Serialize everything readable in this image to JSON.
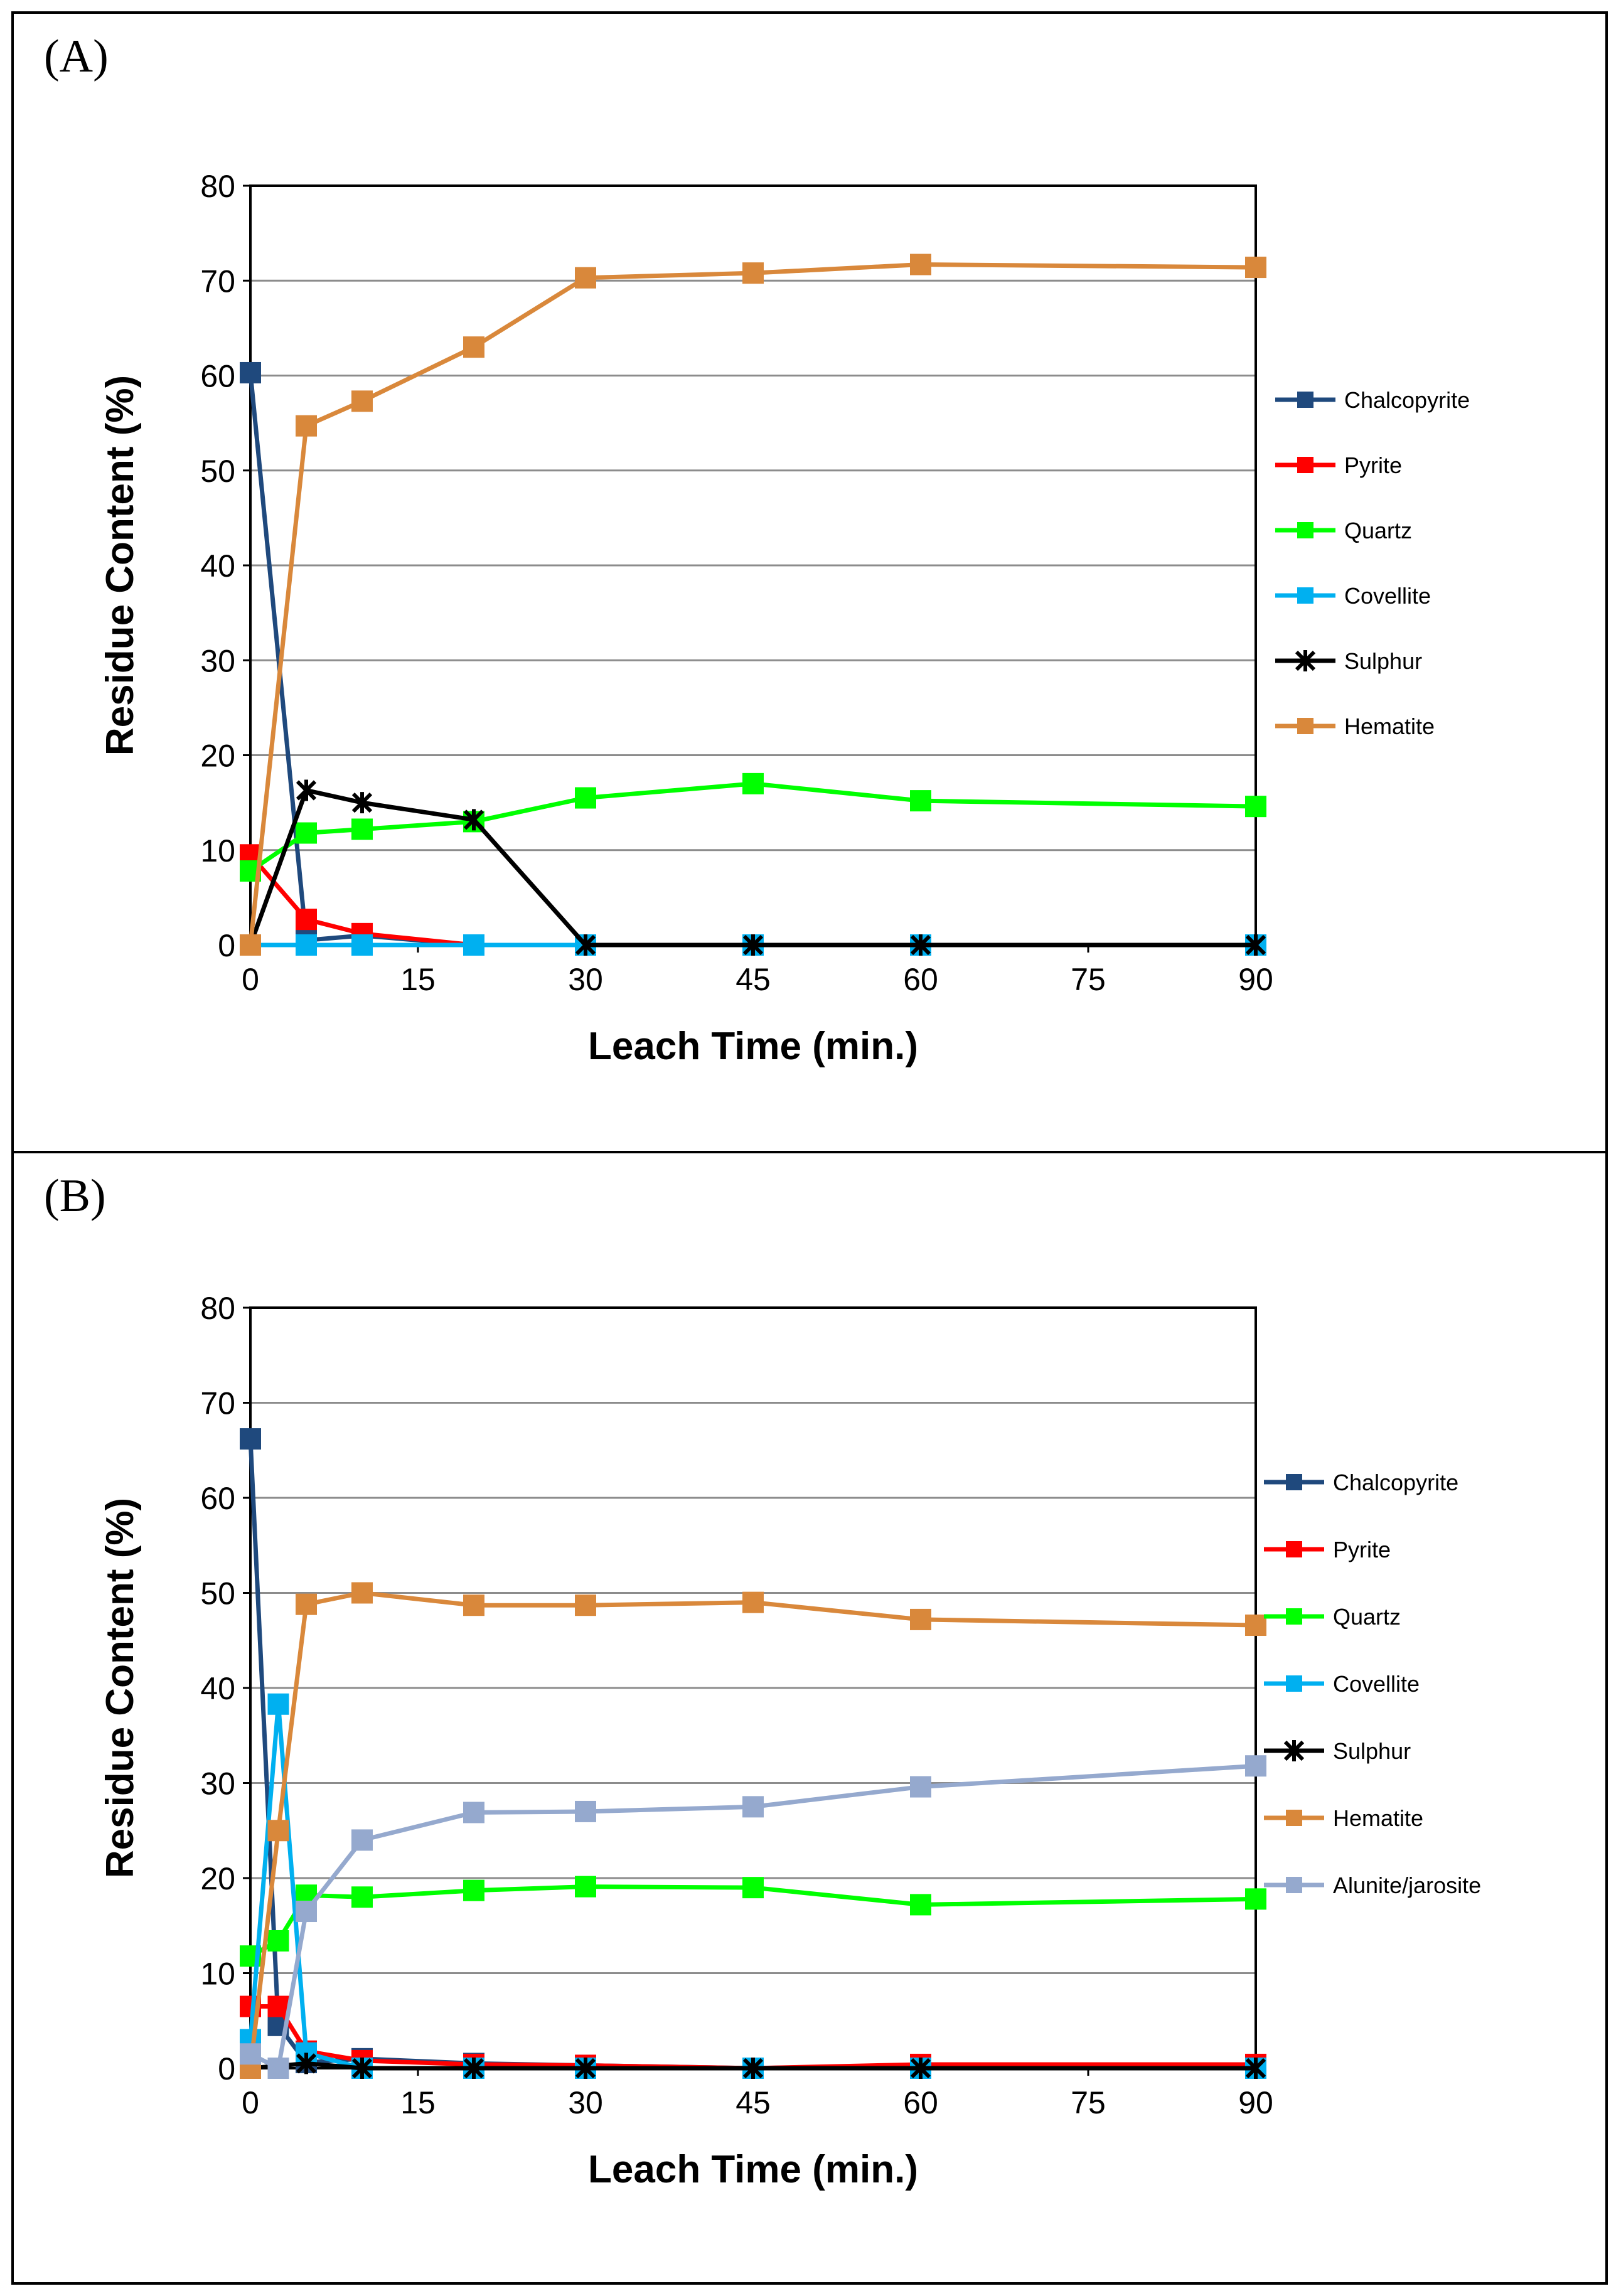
{
  "chart_data": [
    {
      "panel_label": "(A)",
      "type": "line",
      "xlabel": "Leach Time (min.)",
      "ylabel": "Residue Content (%)",
      "x_ticks": [
        "0",
        "15",
        "30",
        "45",
        "60",
        "75",
        "90"
      ],
      "y_ticks": [
        "0",
        "10",
        "20",
        "30",
        "40",
        "50",
        "60",
        "70",
        "80"
      ],
      "ylim": [
        0,
        80
      ],
      "grid": "horizontal",
      "legend_position": "right",
      "series": [
        {
          "name": "Chalcopyrite",
          "color": "#1F497D",
          "marker": "square",
          "x": [
            0,
            5,
            10,
            20
          ],
          "y": [
            60.3,
            0.5,
            1.0,
            0
          ]
        },
        {
          "name": "Pyrite",
          "color": "#FF0000",
          "marker": "square",
          "x": [
            0,
            5,
            10,
            20
          ],
          "y": [
            9.5,
            2.7,
            1.2,
            0
          ]
        },
        {
          "name": "Quartz",
          "color": "#00FF00",
          "marker": "square",
          "x": [
            0,
            5,
            10,
            20,
            30,
            45,
            60,
            90
          ],
          "y": [
            7.8,
            11.8,
            12.2,
            13.0,
            15.5,
            17.0,
            15.2,
            14.6
          ]
        },
        {
          "name": "Covellite",
          "color": "#00B0F0",
          "marker": "square",
          "x": [
            0,
            5,
            10,
            20,
            30,
            45,
            60,
            90
          ],
          "y": [
            0,
            0,
            0,
            0,
            0,
            0,
            0,
            0
          ]
        },
        {
          "name": "Sulphur",
          "color": "#000000",
          "marker": "star",
          "x": [
            0,
            5,
            10,
            20,
            30,
            45,
            60,
            90
          ],
          "y": [
            0,
            16.3,
            15.0,
            13.2,
            0,
            0,
            0,
            0
          ]
        },
        {
          "name": "Hematite",
          "color": "#D9883B",
          "marker": "square",
          "x": [
            0,
            5,
            10,
            20,
            30,
            45,
            60,
            90
          ],
          "y": [
            0,
            54.7,
            57.3,
            63.0,
            70.3,
            70.8,
            71.7,
            71.4
          ]
        }
      ]
    },
    {
      "panel_label": "(B)",
      "type": "line",
      "xlabel": "Leach Time (min.)",
      "ylabel": "Residue Content (%)",
      "x_ticks": [
        "0",
        "15",
        "30",
        "45",
        "60",
        "75",
        "90"
      ],
      "y_ticks": [
        "0",
        "10",
        "20",
        "30",
        "40",
        "50",
        "60",
        "70",
        "80"
      ],
      "ylim": [
        0,
        80
      ],
      "grid": "horizontal",
      "legend_position": "right",
      "series": [
        {
          "name": "Chalcopyrite",
          "color": "#1F497D",
          "marker": "square",
          "x": [
            0,
            2.5,
            5,
            10,
            20,
            30,
            45,
            60,
            90
          ],
          "y": [
            66.2,
            4.5,
            0.6,
            1.0,
            0.5,
            0.3,
            0,
            0.3,
            0.3
          ]
        },
        {
          "name": "Pyrite",
          "color": "#FF0000",
          "marker": "square",
          "x": [
            0,
            2.5,
            5,
            10,
            20,
            30,
            45,
            60,
            90
          ],
          "y": [
            6.5,
            6.5,
            1.8,
            0.8,
            0.4,
            0.3,
            0,
            0.4,
            0.4
          ]
        },
        {
          "name": "Quartz",
          "color": "#00FF00",
          "marker": "square",
          "x": [
            0,
            2.5,
            5,
            10,
            20,
            30,
            45,
            60,
            90
          ],
          "y": [
            11.8,
            13.4,
            18.2,
            18.0,
            18.7,
            19.1,
            19.0,
            17.2,
            17.8
          ]
        },
        {
          "name": "Covellite",
          "color": "#00B0F0",
          "marker": "square",
          "x": [
            0,
            2.5,
            5,
            10,
            20,
            30,
            45,
            60,
            90
          ],
          "y": [
            3.0,
            38.3,
            1.6,
            0,
            0,
            0,
            0,
            0,
            0
          ]
        },
        {
          "name": "Sulphur",
          "color": "#000000",
          "marker": "star",
          "x": [
            0,
            5,
            10,
            20,
            30,
            45,
            60,
            90
          ],
          "y": [
            0,
            0.5,
            0,
            0,
            0,
            0,
            0,
            0
          ]
        },
        {
          "name": "Hematite",
          "color": "#D9883B",
          "marker": "square",
          "x": [
            0,
            2.5,
            5,
            10,
            20,
            30,
            45,
            60,
            90
          ],
          "y": [
            0,
            25.0,
            48.8,
            50.0,
            48.7,
            48.7,
            49.0,
            47.2,
            46.6
          ]
        },
        {
          "name": "Alunite/jarosite",
          "color": "#95A9CE",
          "marker": "square",
          "x": [
            0,
            2.5,
            5,
            10,
            20,
            30,
            45,
            60,
            90
          ],
          "y": [
            1.5,
            0,
            16.5,
            24.0,
            26.9,
            27.0,
            27.5,
            29.6,
            31.8
          ]
        }
      ]
    }
  ]
}
